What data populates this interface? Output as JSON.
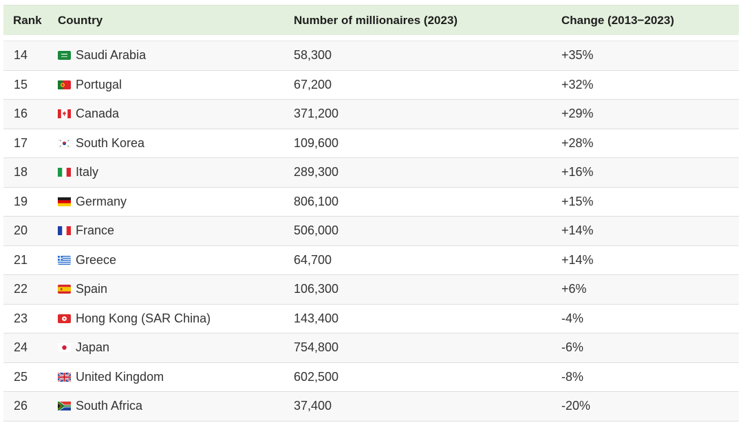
{
  "table": {
    "headers": {
      "rank": "Rank",
      "country": "Country",
      "millionaires": "Number of millionaires (2023)",
      "change": "Change (2013−2023)"
    },
    "rows": [
      {
        "rank": "14",
        "flag": "saudi-arabia-flag",
        "country": "Saudi Arabia",
        "millionaires": "58,300",
        "change": "+35%"
      },
      {
        "rank": "15",
        "flag": "portugal-flag",
        "country": "Portugal",
        "millionaires": "67,200",
        "change": "+32%"
      },
      {
        "rank": "16",
        "flag": "canada-flag",
        "country": "Canada",
        "millionaires": "371,200",
        "change": "+29%"
      },
      {
        "rank": "17",
        "flag": "south-korea-flag",
        "country": "South Korea",
        "millionaires": "109,600",
        "change": "+28%"
      },
      {
        "rank": "18",
        "flag": "italy-flag",
        "country": "Italy",
        "millionaires": "289,300",
        "change": "+16%"
      },
      {
        "rank": "19",
        "flag": "germany-flag",
        "country": "Germany",
        "millionaires": "806,100",
        "change": "+15%"
      },
      {
        "rank": "20",
        "flag": "france-flag",
        "country": "France",
        "millionaires": "506,000",
        "change": "+14%"
      },
      {
        "rank": "21",
        "flag": "greece-flag",
        "country": "Greece",
        "millionaires": "64,700",
        "change": "+14%"
      },
      {
        "rank": "22",
        "flag": "spain-flag",
        "country": "Spain",
        "millionaires": "106,300",
        "change": "+6%"
      },
      {
        "rank": "23",
        "flag": "hong-kong-flag",
        "country": "Hong Kong (SAR China)",
        "millionaires": "143,400",
        "change": "-4%"
      },
      {
        "rank": "24",
        "flag": "japan-flag",
        "country": "Japan",
        "millionaires": "754,800",
        "change": "-6%"
      },
      {
        "rank": "25",
        "flag": "united-kingdom-flag",
        "country": "United Kingdom",
        "millionaires": "602,500",
        "change": "-8%"
      },
      {
        "rank": "26",
        "flag": "south-africa-flag",
        "country": "South Africa",
        "millionaires": "37,400",
        "change": "-20%"
      }
    ]
  },
  "colors": {
    "header_bg": "#e3f0dd",
    "row_shade": "#f8f8f8",
    "row_border": "#dedede"
  }
}
